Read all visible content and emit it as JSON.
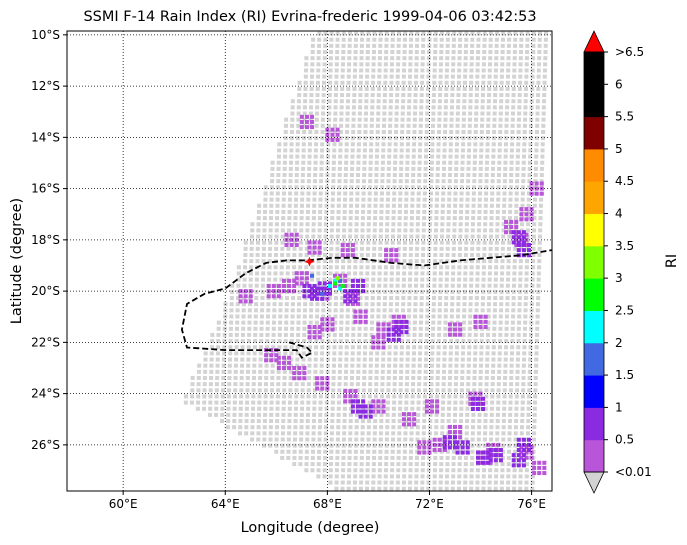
{
  "chart_data": {
    "type": "heatmap",
    "title": "SSMI F-14 Rain Index (RI) Evrina-frederic 1999-04-06 03:42:53",
    "xlabel": "Longitude (degree)",
    "ylabel": "Latitude (degree)",
    "xlim": [
      57.8,
      76.8
    ],
    "ylim": [
      -27.8,
      -9.85
    ],
    "x_ticks": [
      60,
      64,
      68,
      72,
      76
    ],
    "x_tick_labels": [
      "60°E",
      "64°E",
      "68°E",
      "72°E",
      "76°E"
    ],
    "y_ticks": [
      -10,
      -12,
      -14,
      -16,
      -18,
      -20,
      -22,
      -24,
      -26
    ],
    "y_tick_labels": [
      "10°S",
      "12°S",
      "14°S",
      "16°S",
      "18°S",
      "20°S",
      "22°S",
      "24°S",
      "26°S"
    ],
    "grid": "dotted",
    "colorbar": {
      "label": "RI",
      "bounds": [
        0.01,
        0.5,
        1,
        1.5,
        2,
        2.5,
        3,
        3.5,
        4,
        4.5,
        5,
        5.5,
        6,
        6.5
      ],
      "colors": [
        "#b855d9",
        "#8a2be2",
        "#0000ff",
        "#4169e1",
        "#00ffff",
        "#00ff00",
        "#7fff00",
        "#ffff00",
        "#ffa500",
        "#ff8c00",
        "#800000",
        "#000000",
        "#000000"
      ],
      "tick_labels": [
        "<0.01",
        "0.5",
        "1",
        "1.5",
        "2",
        "2.5",
        "3",
        "3.5",
        "4",
        "4.5",
        "5",
        "5.5",
        "6",
        ">6.5"
      ],
      "under_color": "#d3d3d3",
      "over_color": "#ff0000"
    },
    "swath_color": "#d3d3d3",
    "swath_outline": [
      [
        67.5,
        -9.85
      ],
      [
        76.8,
        -9.85
      ],
      [
        76.8,
        -27.8
      ],
      [
        68.5,
        -27.8
      ],
      [
        62.3,
        -24.3
      ],
      [
        64.0,
        -20.5
      ],
      [
        65.5,
        -16.0
      ]
    ],
    "rain_regions": [
      {
        "class": 1,
        "points": [
          [
            67.0,
            -19.5
          ],
          [
            66.5,
            -19.8
          ],
          [
            67.8,
            -20.1
          ],
          [
            68.5,
            -19.6
          ],
          [
            69.0,
            -20.3
          ],
          [
            68.0,
            -21.3
          ],
          [
            67.5,
            -21.6
          ],
          [
            69.3,
            -21.0
          ],
          [
            70.2,
            -21.5
          ],
          [
            70.8,
            -21.2
          ],
          [
            73.8,
            -24.2
          ],
          [
            71.8,
            -26.1
          ],
          [
            74.2,
            -26.5
          ],
          [
            75.8,
            -26.3
          ],
          [
            75.6,
            -18.0
          ],
          [
            75.8,
            -17.0
          ],
          [
            68.2,
            -13.9
          ],
          [
            67.2,
            -13.4
          ],
          [
            66.6,
            -18.0
          ],
          [
            67.5,
            -18.3
          ],
          [
            65.8,
            -22.5
          ],
          [
            66.3,
            -22.8
          ],
          [
            66.9,
            -23.2
          ],
          [
            67.8,
            -23.6
          ],
          [
            68.9,
            -24.1
          ],
          [
            70.0,
            -24.5
          ],
          [
            71.2,
            -25.0
          ],
          [
            72.1,
            -24.5
          ],
          [
            73.0,
            -25.5
          ],
          [
            72.4,
            -26.0
          ],
          [
            73.0,
            -21.5
          ],
          [
            74.0,
            -21.2
          ],
          [
            70.0,
            -22.0
          ],
          [
            74.5,
            -26.2
          ],
          [
            76.3,
            -26.9
          ],
          [
            76.2,
            -16.0
          ],
          [
            75.2,
            -17.5
          ],
          [
            64.8,
            -20.2
          ],
          [
            65.9,
            -20.0
          ],
          [
            68.8,
            -18.4
          ],
          [
            70.5,
            -18.6
          ]
        ]
      },
      {
        "class": 2,
        "points": [
          [
            67.3,
            -20.0
          ],
          [
            67.6,
            -20.1
          ],
          [
            67.9,
            -19.9
          ],
          [
            68.9,
            -20.2
          ],
          [
            69.2,
            -19.8
          ],
          [
            70.6,
            -21.7
          ],
          [
            70.9,
            -21.4
          ],
          [
            73.3,
            -26.1
          ],
          [
            74.1,
            -26.5
          ],
          [
            74.6,
            -26.4
          ],
          [
            75.5,
            -26.6
          ],
          [
            75.7,
            -26.0
          ],
          [
            75.5,
            -17.9
          ],
          [
            75.7,
            -18.4
          ],
          [
            73.9,
            -24.4
          ],
          [
            69.2,
            -24.5
          ],
          [
            69.5,
            -24.7
          ],
          [
            72.8,
            -25.9
          ]
        ]
      },
      {
        "class": 4,
        "points": [
          [
            68.5,
            -19.6
          ],
          [
            67.4,
            -19.4
          ],
          [
            67.8,
            -20.1
          ]
        ]
      },
      {
        "class": 5,
        "points": [
          [
            68.1,
            -19.8
          ],
          [
            68.5,
            -19.9
          ],
          [
            68.3,
            -19.6
          ]
        ]
      },
      {
        "class": 6,
        "points": [
          [
            68.3,
            -19.7
          ],
          [
            68.6,
            -19.8
          ]
        ]
      },
      {
        "class": 7,
        "points": [
          [
            68.4,
            -19.5
          ]
        ]
      }
    ],
    "track_line": [
      [
        66.5,
        -22.0
      ],
      [
        67.2,
        -22.2
      ],
      [
        67.4,
        -22.4
      ],
      [
        67.0,
        -22.6
      ],
      [
        66.8,
        -22.3
      ],
      [
        66.0,
        -22.3
      ],
      [
        64.0,
        -22.3
      ],
      [
        62.5,
        -22.2
      ],
      [
        62.3,
        -21.5
      ],
      [
        62.5,
        -20.5
      ],
      [
        63.2,
        -20.1
      ],
      [
        64.0,
        -19.9
      ],
      [
        64.8,
        -19.3
      ],
      [
        65.6,
        -18.9
      ],
      [
        66.4,
        -18.8
      ],
      [
        67.2,
        -18.8
      ],
      [
        68.2,
        -18.7
      ],
      [
        69.1,
        -18.7
      ],
      [
        70.5,
        -18.9
      ],
      [
        71.8,
        -19.0
      ],
      [
        73.2,
        -18.8
      ],
      [
        74.4,
        -18.7
      ],
      [
        75.6,
        -18.6
      ],
      [
        76.8,
        -18.4
      ]
    ],
    "marker": {
      "lon": 67.3,
      "lat": -18.85,
      "color": "#ff0000"
    }
  }
}
